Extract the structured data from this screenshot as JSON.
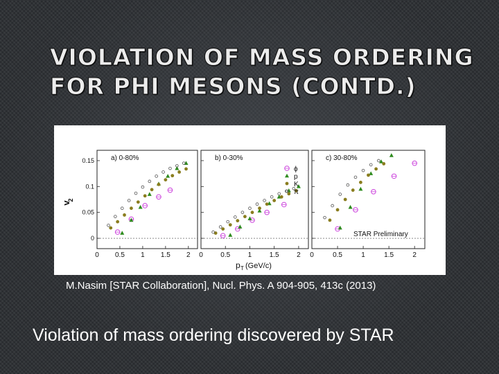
{
  "slide": {
    "title_line1": "VIOLATION OF MASS ORDERING",
    "title_line2": "FOR PHI MESONS (CONTD.)",
    "citation": "M.Nasim [STAR Collaboration], Nucl. Phys. A 904-905, 413c (2013)",
    "caption": "Violation of mass ordering discovered by STAR"
  },
  "chart_data": {
    "type": "scatter",
    "ylabel": "v2",
    "xlabel": "pT (GeV/c)",
    "ylim": [
      -0.02,
      0.17
    ],
    "xlim": [
      0,
      2.2
    ],
    "yticks": [
      0,
      0.05,
      0.1,
      0.15
    ],
    "ytick_labels": [
      "0",
      "0.05",
      "0.1",
      "0.15"
    ],
    "xticks": [
      0,
      0.5,
      1,
      1.5,
      2
    ],
    "xtick_labels": [
      "0",
      "0.5",
      "1",
      "1.5",
      "2"
    ],
    "legend": {
      "placement": "top-right of panel b",
      "entries": [
        {
          "symbol": "phi",
          "label": "ϕ",
          "color": "#cc44dd"
        },
        {
          "symbol": "proton",
          "label": "p",
          "color": "#2e8b1e"
        },
        {
          "symbol": "kaon",
          "label": "K",
          "color": "#8a7d1e"
        },
        {
          "symbol": "pion",
          "label": "π",
          "color": "#555555"
        }
      ]
    },
    "annotation": "STAR Preliminary",
    "panels": [
      {
        "label": "a) 0-80%",
        "series": [
          {
            "name": "ϕ",
            "marker": "phi",
            "x": [
              0.45,
              0.75,
              1.05,
              1.35,
              1.6
            ],
            "y": [
              0.012,
              0.037,
              0.063,
              0.08,
              0.093
            ]
          },
          {
            "name": "p",
            "marker": "proton",
            "x": [
              0.55,
              0.75,
              0.95,
              1.15,
              1.35,
              1.55,
              1.75,
              1.95
            ],
            "y": [
              0.01,
              0.035,
              0.06,
              0.085,
              0.105,
              0.12,
              0.135,
              0.145
            ]
          },
          {
            "name": "K",
            "marker": "kaon",
            "x": [
              0.3,
              0.45,
              0.6,
              0.75,
              0.9,
              1.05,
              1.2,
              1.35,
              1.5,
              1.65,
              1.8,
              1.95
            ],
            "y": [
              0.02,
              0.032,
              0.045,
              0.058,
              0.07,
              0.082,
              0.094,
              0.104,
              0.113,
              0.121,
              0.128,
              0.134
            ]
          },
          {
            "name": "π",
            "marker": "pion",
            "x": [
              0.25,
              0.4,
              0.55,
              0.7,
              0.85,
              1.0,
              1.15,
              1.3,
              1.45,
              1.6,
              1.75,
              1.9
            ],
            "y": [
              0.025,
              0.042,
              0.058,
              0.073,
              0.087,
              0.099,
              0.11,
              0.12,
              0.128,
              0.135,
              0.14,
              0.145
            ]
          }
        ]
      },
      {
        "label": "b) 0-30%",
        "series": [
          {
            "name": "ϕ",
            "marker": "phi",
            "x": [
              0.45,
              0.75,
              1.05,
              1.35,
              1.7
            ],
            "y": [
              0.005,
              0.018,
              0.035,
              0.05,
              0.065
            ]
          },
          {
            "name": "p",
            "marker": "proton",
            "x": [
              0.6,
              0.8,
              1.0,
              1.2,
              1.4,
              1.6,
              1.8,
              2.0
            ],
            "y": [
              0.006,
              0.022,
              0.038,
              0.053,
              0.067,
              0.08,
              0.092,
              0.1
            ]
          },
          {
            "name": "K",
            "marker": "kaon",
            "x": [
              0.3,
              0.45,
              0.6,
              0.75,
              0.9,
              1.05,
              1.2,
              1.35,
              1.5,
              1.65,
              1.8,
              1.95
            ],
            "y": [
              0.01,
              0.018,
              0.026,
              0.034,
              0.042,
              0.05,
              0.058,
              0.066,
              0.073,
              0.08,
              0.086,
              0.092
            ]
          },
          {
            "name": "π",
            "marker": "pion",
            "x": [
              0.25,
              0.4,
              0.55,
              0.7,
              0.85,
              1.0,
              1.15,
              1.3,
              1.45,
              1.6,
              1.75,
              1.9
            ],
            "y": [
              0.012,
              0.022,
              0.032,
              0.041,
              0.05,
              0.058,
              0.066,
              0.073,
              0.08,
              0.086,
              0.091,
              0.096
            ]
          }
        ]
      },
      {
        "label": "c) 30-80%",
        "series": [
          {
            "name": "ϕ",
            "marker": "phi",
            "x": [
              0.5,
              0.85,
              1.2,
              1.6,
              2.0
            ],
            "y": [
              0.018,
              0.055,
              0.09,
              0.12,
              0.145
            ]
          },
          {
            "name": "p",
            "marker": "proton",
            "x": [
              0.55,
              0.75,
              0.95,
              1.15,
              1.35,
              1.55
            ],
            "y": [
              0.02,
              0.06,
              0.095,
              0.125,
              0.148,
              0.16
            ]
          },
          {
            "name": "K",
            "marker": "kaon",
            "x": [
              0.35,
              0.5,
              0.65,
              0.8,
              0.95,
              1.1,
              1.25,
              1.4
            ],
            "y": [
              0.035,
              0.055,
              0.075,
              0.093,
              0.108,
              0.122,
              0.134,
              0.144
            ]
          },
          {
            "name": "π",
            "marker": "pion",
            "x": [
              0.25,
              0.4,
              0.55,
              0.7,
              0.85,
              1.0,
              1.15,
              1.3
            ],
            "y": [
              0.04,
              0.063,
              0.085,
              0.103,
              0.118,
              0.131,
              0.142,
              0.15
            ]
          }
        ]
      }
    ]
  }
}
